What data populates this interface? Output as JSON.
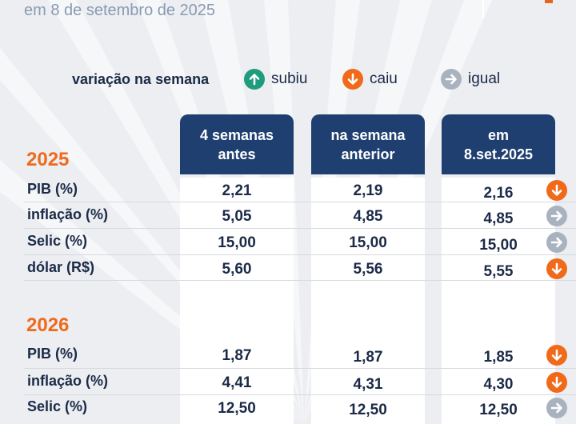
{
  "subtitle": "em 8 de setembro de 2025",
  "legend": {
    "title": "variação na semana",
    "up": {
      "label": "subiu",
      "icon": "arrow-up-icon",
      "color": "#1f9b7d"
    },
    "down": {
      "label": "caiu",
      "icon": "arrow-down-icon",
      "color": "#f06a1a"
    },
    "equal": {
      "label": "igual",
      "icon": "arrow-right-icon",
      "color": "#a9b3c0"
    }
  },
  "columns": [
    {
      "line1": "4 semanas",
      "line2": "antes"
    },
    {
      "line1": "na semana",
      "line2": "anterior"
    },
    {
      "line1": "em",
      "line2": "8.set.2025"
    }
  ],
  "sections": [
    {
      "year": "2025",
      "rows": [
        {
          "label": "PIB (%)",
          "values": [
            "2,21",
            "2,19",
            "2,16"
          ],
          "change": "down"
        },
        {
          "label": "inflação (%)",
          "values": [
            "5,05",
            "4,85",
            "4,85"
          ],
          "change": "equal"
        },
        {
          "label": "Selic (%)",
          "values": [
            "15,00",
            "15,00",
            "15,00"
          ],
          "change": "equal"
        },
        {
          "label": "dólar (R$)",
          "values": [
            "5,60",
            "5,56",
            "5,55"
          ],
          "change": "down"
        }
      ]
    },
    {
      "year": "2026",
      "rows": [
        {
          "label": "PIB (%)",
          "values": [
            "1,87",
            "1,87",
            "1,85"
          ],
          "change": "down"
        },
        {
          "label": "inflação (%)",
          "values": [
            "4,41",
            "4,31",
            "4,30"
          ],
          "change": "down"
        },
        {
          "label": "Selic (%)",
          "values": [
            "12,50",
            "12,50",
            "12,50"
          ],
          "change": "equal"
        }
      ]
    }
  ]
}
